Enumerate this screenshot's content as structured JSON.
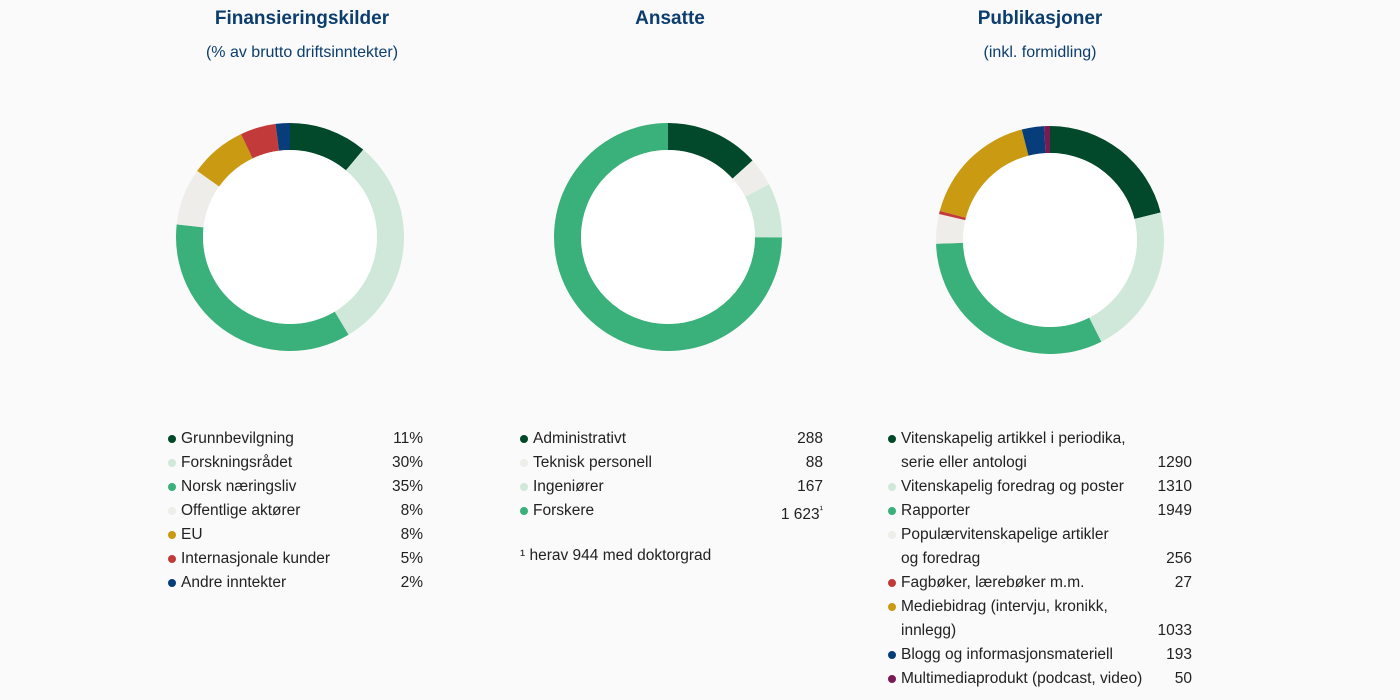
{
  "chart_data": [
    {
      "type": "pie",
      "title": "Finansieringskilder",
      "subtitle": "(% av brutto driftsinntekter)",
      "categories": [
        "Grunnbevilgning",
        "Forskningsrådet",
        "Norsk næringsliv",
        "Offentlige aktører",
        "EU",
        "Internasjonale kunder",
        "Andre inntekter"
      ],
      "values": [
        11,
        30,
        35,
        8,
        8,
        5,
        2
      ],
      "labels": [
        "11%",
        "30%",
        "35%",
        "8%",
        "8%",
        "5%",
        "2%"
      ],
      "colors": [
        "#02482a",
        "#cfe8da",
        "#3ab07a",
        "#eeede9",
        "#c99a12",
        "#c23b3a",
        "#063d7a"
      ],
      "legend": "bottom"
    },
    {
      "type": "pie",
      "title": "Ansatte",
      "categories": [
        "Administrativt",
        "Teknisk personell",
        "Ingeniører",
        "Forskere"
      ],
      "values": [
        288,
        88,
        167,
        1623
      ],
      "labels": [
        "288",
        "88",
        "167",
        "1 623"
      ],
      "label_suffix": [
        "",
        "",
        "",
        "¹"
      ],
      "colors": [
        "#02482a",
        "#eeede9",
        "#cfe8da",
        "#3ab07a"
      ],
      "footnote": "¹ herav 944 med doktorgrad",
      "legend": "bottom"
    },
    {
      "type": "pie",
      "title": "Publikasjoner",
      "subtitle": "(inkl. formidling)",
      "categories": [
        [
          "Vitenskapelig artikkel i periodika,",
          "serie eller antologi"
        ],
        [
          "Vitenskapelig foredrag og poster"
        ],
        [
          "Rapporter"
        ],
        [
          "Populærvitenskapelige artikler",
          "og foredrag"
        ],
        [
          "Fagbøker, lærebøker m.m."
        ],
        [
          "Mediebidrag (intervju, kronikk,",
          "innlegg)"
        ],
        [
          "Blogg og informasjonsmateriell"
        ],
        [
          "Multimediaprodukt (podcast, video)"
        ]
      ],
      "values": [
        1290,
        1310,
        1949,
        256,
        27,
        1033,
        193,
        50
      ],
      "labels": [
        "1290",
        "1310",
        "1949",
        "256",
        "27",
        "1033",
        "193",
        "50"
      ],
      "colors": [
        "#02482a",
        "#cfe8da",
        "#3ab07a",
        "#eeede9",
        "#c23b3a",
        "#c99a12",
        "#063d7a",
        "#7a1a55"
      ],
      "legend": "bottom"
    }
  ]
}
